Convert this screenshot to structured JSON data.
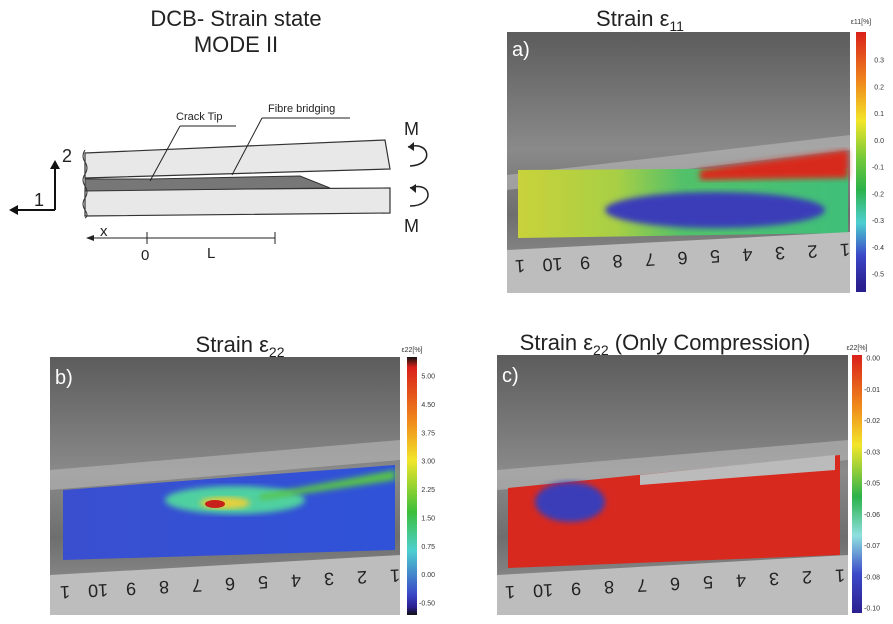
{
  "schematic": {
    "title_line1": "DCB- Strain state",
    "title_line2": "MODE II",
    "crack_tip": "Crack Tip",
    "fibre_bridging": "Fibre bridging",
    "moment_top": "M",
    "moment_bottom": "M",
    "axis_2": "2",
    "axis_1": "1",
    "x_label": "x",
    "origin_label": "0",
    "length_label": "L"
  },
  "panels": [
    {
      "letter": "a)",
      "title": "Strain ε",
      "title_sub": "11",
      "title_rest": "",
      "colorbar_label": "ε11[%]",
      "colorbar_ticks": [
        "0.3",
        "0.2",
        "0.1",
        "0.0",
        "-0.1",
        "-0.2",
        "-0.3",
        "-0.4",
        "-0.5"
      ],
      "ruler": [
        "1",
        "2",
        "3",
        "4",
        "5",
        "6",
        "7",
        "8",
        "9",
        "10",
        "1"
      ]
    },
    {
      "letter": "b)",
      "title": "Strain ε",
      "title_sub": "22",
      "title_rest": "",
      "colorbar_label": "ε22[%]",
      "colorbar_ticks": [
        "5.00",
        "4.50",
        "3.75",
        "3.00",
        "2.25",
        "1.50",
        "0.75",
        "0.00",
        "-0.50"
      ],
      "ruler": [
        "1",
        "2",
        "3",
        "4",
        "5",
        "6",
        "7",
        "8",
        "9",
        "10",
        "1"
      ]
    },
    {
      "letter": "c)",
      "title": "Strain ε",
      "title_sub": "22",
      "title_rest": " (Only Compression)",
      "colorbar_label": "ε22[%]",
      "colorbar_ticks": [
        "0.00",
        "-0.01",
        "-0.02",
        "-0.03",
        "-0.05",
        "-0.06",
        "-0.07",
        "-0.08",
        "-0.10"
      ],
      "ruler": [
        "1",
        "2",
        "3",
        "4",
        "5",
        "6",
        "7",
        "8",
        "9",
        "10",
        "1"
      ]
    }
  ]
}
